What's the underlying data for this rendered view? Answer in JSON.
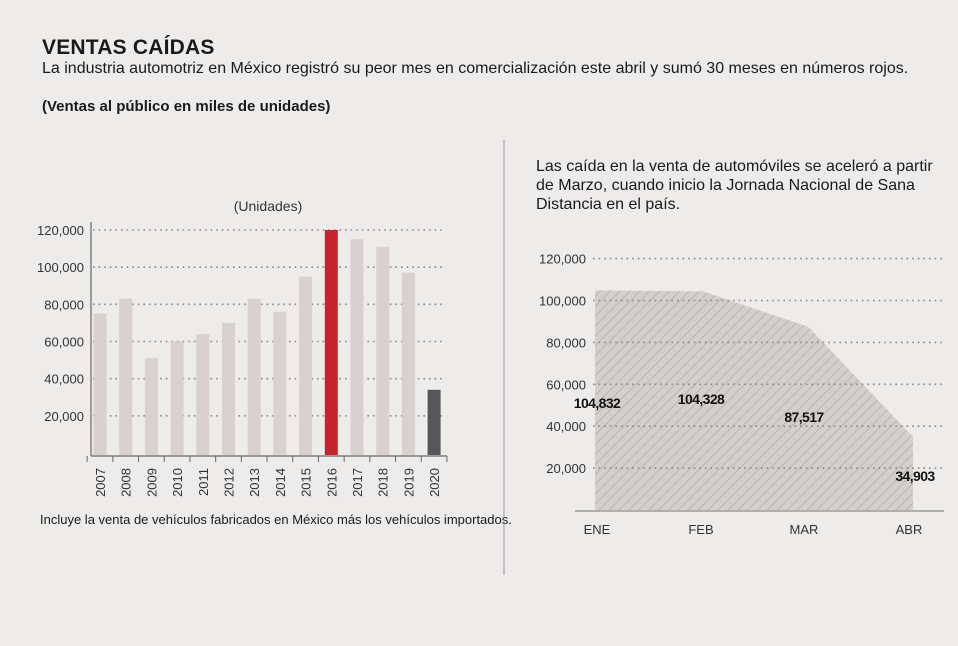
{
  "header": {
    "title": "VENTAS CAÍDAS",
    "subtitle": "La industria automotriz en México registró su peor mes en comercialización este abril y sumó 30 meses en números rojos.",
    "units_note": "(Ventas al público en miles de unidades)"
  },
  "right_description": "Las caída en la venta de automóviles se aceleró a partir de Marzo, cuando inicio la Jornada Nacional de Sana Distancia en el país.",
  "footnote": "Incluye la venta de vehículos fabricados en México más los vehículos importados.",
  "colors": {
    "bar_default": "#d8d1ce",
    "bar_highlight": "#c8232c",
    "bar_last": "#55565a",
    "area_fill": "#d2cfcd",
    "hatch": "#a8a4a2",
    "grid": "#888888"
  },
  "chart_data": [
    {
      "type": "bar",
      "title": "",
      "subtitle": "(Unidades)",
      "categories": [
        "2007",
        "2008",
        "2009",
        "2010",
        "2011",
        "2012",
        "2013",
        "2014",
        "2015",
        "2016",
        "2017",
        "2018",
        "2019",
        "2020"
      ],
      "values": [
        75000,
        83000,
        51000,
        60000,
        64000,
        70000,
        83000,
        76000,
        95000,
        120000,
        115000,
        111000,
        97000,
        34000
      ],
      "highlight_index": 9,
      "last_index": 13,
      "yticks": [
        20000,
        40000,
        60000,
        80000,
        100000,
        120000
      ],
      "ytick_labels": [
        "20,000",
        "40,000",
        "60,000",
        "80,000",
        "100,000",
        "120,000"
      ],
      "ylim": [
        0,
        120000
      ],
      "grid": true
    },
    {
      "type": "area",
      "title": "",
      "categories": [
        "ENE",
        "FEB",
        "MAR",
        "ABR"
      ],
      "values": [
        104832,
        104328,
        87517,
        34903
      ],
      "data_labels": [
        "104,832",
        "104,328",
        "87,517",
        "34,903"
      ],
      "yticks": [
        20000,
        40000,
        60000,
        80000,
        100000,
        120000
      ],
      "ytick_labels": [
        "20,000",
        "40,000",
        "60,000",
        "80,000",
        "100,000",
        "120,000"
      ],
      "ylim": [
        0,
        120000
      ],
      "grid": true
    }
  ]
}
